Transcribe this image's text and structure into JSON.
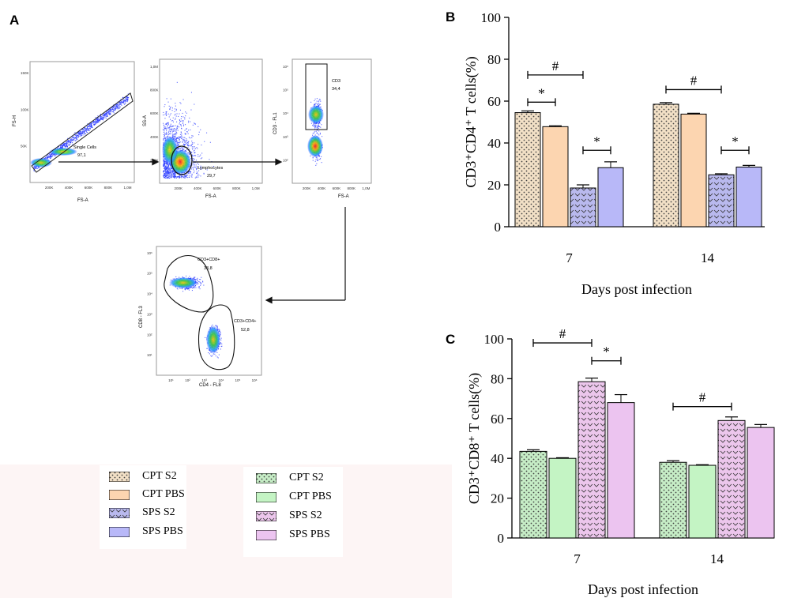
{
  "panel_labels": {
    "a": "A",
    "b": "B",
    "c": "C"
  },
  "flow": {
    "plot1": {
      "ylabel": "FS-H",
      "xlabel": "FS-A",
      "gate_name": "Single Cells",
      "gate_value": "97,1",
      "xticks": [
        "200K",
        "400K",
        "600K",
        "800K",
        "1,0M"
      ],
      "yticks": [
        "50K",
        "100K",
        "150K"
      ]
    },
    "plot2": {
      "ylabel": "SS-A",
      "xlabel": "FS-A",
      "gate_name": "Lymphocytes",
      "gate_value": "29,7",
      "xticks": [
        "200K",
        "400K",
        "600K",
        "800K",
        "1,0M"
      ],
      "yticks": [
        "200K",
        "400K",
        "600K",
        "800K",
        "1,0M"
      ]
    },
    "plot3": {
      "ylabel": "CD3 - FL1",
      "xlabel": "FS-A",
      "gate_name": "CD3",
      "gate_value": "34,4",
      "xticks": [
        "200K",
        "400K",
        "600K",
        "800K",
        "1,0M"
      ],
      "yticks": [
        "10²",
        "10³",
        "10⁴",
        "10⁵",
        "10⁶"
      ]
    },
    "plot4": {
      "ylabel": "CD8 - FL3",
      "xlabel": "CD4 - FL8",
      "gate1_name": "CD3+CD8+",
      "gate1_value": "33,8",
      "gate2_name": "CD3+CD4+",
      "gate2_value": "52,8",
      "xticks": [
        "10¹",
        "10²",
        "10³",
        "10⁴",
        "10⁵",
        "10⁶"
      ],
      "yticks": [
        "10¹",
        "10²",
        "10³",
        "10⁴",
        "10⁵",
        "10⁶"
      ]
    }
  },
  "legend_b": [
    {
      "label": "CPT S2",
      "color": "#f2e0c6",
      "pattern": "dots"
    },
    {
      "label": "CPT PBS",
      "color": "#fcd5b0",
      "pattern": "none"
    },
    {
      "label": "SPS S2",
      "color": "#b9b9ee",
      "pattern": "chevrons"
    },
    {
      "label": "SPS PBS",
      "color": "#b8b8f8",
      "pattern": "none"
    }
  ],
  "legend_c": [
    {
      "label": "CPT S2",
      "color": "#c6edc6",
      "pattern": "dots"
    },
    {
      "label": "CPT PBS",
      "color": "#c4f4c4",
      "pattern": "none"
    },
    {
      "label": "SPS S2",
      "color": "#ecc6ec",
      "pattern": "chevrons"
    },
    {
      "label": "SPS PBS",
      "color": "#ecc4f0",
      "pattern": "none"
    }
  ],
  "chart_data": [
    {
      "id": "B",
      "type": "bar",
      "title": "",
      "xlabel": "Days post infection",
      "ylabel": "CD3⁺CD4⁺ T cells(%)",
      "categories": [
        "7",
        "14"
      ],
      "ylim": [
        0,
        100
      ],
      "yticks": [
        0,
        20,
        40,
        60,
        80,
        100
      ],
      "series": [
        {
          "name": "CPT S2",
          "values": [
            54.5,
            58.5
          ],
          "errors": [
            0.8,
            0.8
          ],
          "color": "#f2e0c6",
          "pattern": "dots"
        },
        {
          "name": "CPT PBS",
          "values": [
            47.8,
            53.8
          ],
          "errors": [
            0.4,
            0.4
          ],
          "color": "#fcd5b0",
          "pattern": "none"
        },
        {
          "name": "SPS S2",
          "values": [
            18.5,
            24.8
          ],
          "errors": [
            1.5,
            0.5
          ],
          "color": "#b9b9ee",
          "pattern": "chevrons"
        },
        {
          "name": "SPS PBS",
          "values": [
            28.2,
            28.5
          ],
          "errors": [
            2.8,
            0.8
          ],
          "color": "#b8b8f8",
          "pattern": "none"
        }
      ],
      "annotations": [
        {
          "symbol": "#",
          "from_series": 0,
          "to_series": 2,
          "category": 0,
          "y": 72.5
        },
        {
          "symbol": "*",
          "from_series": 0,
          "to_series": 1,
          "category": 0,
          "y": 59.5
        },
        {
          "symbol": "*",
          "from_series": 2,
          "to_series": 3,
          "category": 0,
          "y": 36.5
        },
        {
          "symbol": "#",
          "from_series": 0,
          "to_series": 2,
          "category": 1,
          "y": 65.5
        },
        {
          "symbol": "*",
          "from_series": 2,
          "to_series": 3,
          "category": 1,
          "y": 36.5
        }
      ]
    },
    {
      "id": "C",
      "type": "bar",
      "title": "",
      "xlabel": "Days post infection",
      "ylabel": "CD3⁺CD8⁺ T cells(%)",
      "categories": [
        "7",
        "14"
      ],
      "ylim": [
        0,
        100
      ],
      "yticks": [
        0,
        20,
        40,
        60,
        80,
        100
      ],
      "series": [
        {
          "name": "CPT S2",
          "values": [
            43.5,
            38.0
          ],
          "errors": [
            0.8,
            0.8
          ],
          "color": "#c6edc6",
          "pattern": "dots"
        },
        {
          "name": "CPT PBS",
          "values": [
            40.0,
            36.5
          ],
          "errors": [
            0.3,
            0.3
          ],
          "color": "#c4f4c4",
          "pattern": "none"
        },
        {
          "name": "SPS S2",
          "values": [
            78.5,
            59.0
          ],
          "errors": [
            1.8,
            1.8
          ],
          "color": "#ecc6ec",
          "pattern": "chevrons"
        },
        {
          "name": "SPS PBS",
          "values": [
            68.0,
            55.5
          ],
          "errors": [
            4.0,
            1.5
          ],
          "color": "#ecc4f0",
          "pattern": "none"
        }
      ],
      "annotations": [
        {
          "symbol": "#",
          "from_series": 0,
          "to_series": 2,
          "category": 0,
          "y": 98
        },
        {
          "symbol": "*",
          "from_series": 2,
          "to_series": 3,
          "category": 0,
          "y": 89
        },
        {
          "symbol": "#",
          "from_series": 0,
          "to_series": 2,
          "category": 1,
          "y": 66
        }
      ]
    }
  ]
}
